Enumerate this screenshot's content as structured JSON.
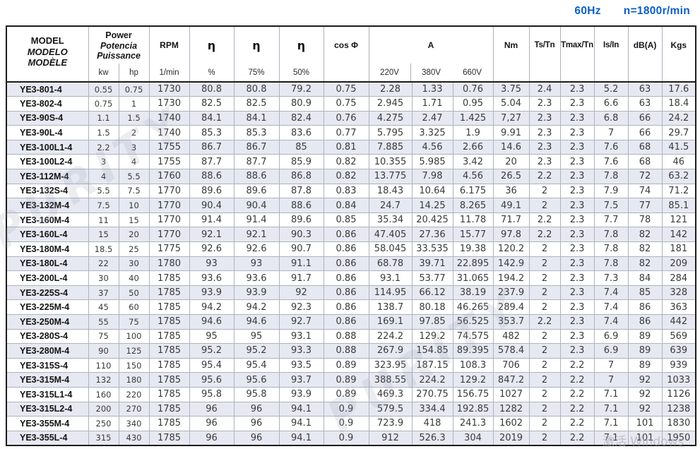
{
  "titlebar": {
    "frequency": "60Hz",
    "speed": "n=1800r/min"
  },
  "colors": {
    "accent_blue": "#0b5fc2",
    "row_stripe": "#e6e9f2",
    "grid_line": "#adb2bd",
    "outer_border": "#1c1c1c"
  },
  "table": {
    "header": {
      "model_lines": [
        "MODEL",
        "MODELO",
        "MODÈLE"
      ],
      "power_lines": [
        "Power",
        "Potencia",
        "Puissance"
      ],
      "power_units": [
        "kw",
        "hp"
      ],
      "rpm": "RPM",
      "rpm_unit": "1/min",
      "eta": "η",
      "eta_units": [
        "%",
        "75%",
        "50%"
      ],
      "cos_phi": "cos Φ",
      "current": "A",
      "current_units": [
        "220V",
        "380V",
        "660V"
      ],
      "torque": "Nm",
      "ts_tn": "Ts/Tn",
      "tmax_tn": "Tmax/Tn",
      "is_in": "Is/In",
      "db": "dB(A)",
      "kgs": "Kgs"
    },
    "column_keys": [
      "model",
      "kw",
      "hp",
      "rpm",
      "eta_100",
      "eta_75",
      "eta_50",
      "cos_phi",
      "a_220v",
      "a_380v",
      "a_660v",
      "nm",
      "ts_tn",
      "tmax_tn",
      "is_in",
      "dba",
      "kgs"
    ],
    "rows": [
      [
        "YE3-801-4",
        "0.55",
        "0.75",
        "1730",
        "80.8",
        "80.8",
        "79.2",
        "0.75",
        "2.28",
        "1.33",
        "0.76",
        "3.75",
        "2.4",
        "2.3",
        "5.2",
        "63",
        "17.6"
      ],
      [
        "YE3-802-4",
        "0.75",
        "1",
        "1730",
        "82.5",
        "82.5",
        "80.9",
        "0.75",
        "2.945",
        "1.71",
        "0.95",
        "5.04",
        "2.3",
        "2.3",
        "6.6",
        "63",
        "18.4"
      ],
      [
        "YE3-90S-4",
        "1.1",
        "1.5",
        "1740",
        "84.1",
        "84.1",
        "82.4",
        "0.76",
        "4.275",
        "2.47",
        "1.425",
        "7,27",
        "2.3",
        "2.3",
        "6.8",
        "66",
        "24.2"
      ],
      [
        "YE3-90L-4",
        "1.5",
        "2",
        "1740",
        "85.3",
        "85.3",
        "83.6",
        "0.77",
        "5.795",
        "3.325",
        "1.9",
        "9.91",
        "2.3",
        "2.3",
        "7",
        "66",
        "29.7"
      ],
      [
        "YE3-100L1-4",
        "2.2",
        "3",
        "1755",
        "86.7",
        "86.7",
        "85",
        "0.81",
        "7.885",
        "4.56",
        "2.66",
        "14.6",
        "2.3",
        "2.3",
        "7.6",
        "68",
        "41.5"
      ],
      [
        "YE3-100L2-4",
        "3",
        "4",
        "1755",
        "87.7",
        "87.7",
        "85.9",
        "0.82",
        "10.355",
        "5.985",
        "3.42",
        "20",
        "2.3",
        "2.3",
        "7.6",
        "68",
        "46"
      ],
      [
        "YE3-112M-4",
        "4",
        "5.5",
        "1760",
        "88.6",
        "88.6",
        "86.8",
        "0.82",
        "13.775",
        "7.98",
        "4.56",
        "26.5",
        "2.2",
        "2.3",
        "7.8",
        "72",
        "63.2"
      ],
      [
        "YE3-132S-4",
        "5.5",
        "7.5",
        "1770",
        "89.6",
        "89.6",
        "87.8",
        "0.83",
        "18.43",
        "10.64",
        "6.175",
        "36",
        "2",
        "2.3",
        "7.9",
        "74",
        "71.2"
      ],
      [
        "YE3-132M-4",
        "7.5",
        "10",
        "1770",
        "90.4",
        "90.4",
        "88.6",
        "0.84",
        "24.7",
        "14.25",
        "8.265",
        "49.1",
        "2",
        "2.3",
        "7.5",
        "77",
        "85.1"
      ],
      [
        "YE3-160M-4",
        "11",
        "15",
        "1770",
        "91.4",
        "91.4",
        "89.6",
        "0.85",
        "35.34",
        "20.425",
        "11.78",
        "71.7",
        "2.2",
        "2.3",
        "7.7",
        "78",
        "121"
      ],
      [
        "YE3-160L-4",
        "15",
        "20",
        "1770",
        "92.1",
        "92.1",
        "90.3",
        "0.86",
        "47.405",
        "27.36",
        "15.77",
        "97.8",
        "2.2",
        "2.3",
        "7.8",
        "82",
        "142"
      ],
      [
        "YE3-180M-4",
        "18.5",
        "25",
        "1775",
        "92.6",
        "92.6",
        "90.7",
        "0.86",
        "58.045",
        "33.535",
        "19.38",
        "120.2",
        "2",
        "2.3",
        "7.8",
        "82",
        "181"
      ],
      [
        "YE3-180L-4",
        "22",
        "30",
        "1780",
        "93",
        "93",
        "91.1",
        "0.86",
        "68.78",
        "39.71",
        "22.895",
        "142.9",
        "2",
        "2.3",
        "7.8",
        "82",
        "209"
      ],
      [
        "YE3-200L-4",
        "30",
        "40",
        "1785",
        "93.6",
        "93.6",
        "91.7",
        "0.86",
        "93.1",
        "53.77",
        "31.065",
        "194.2",
        "2",
        "2.3",
        "7.3",
        "84",
        "284"
      ],
      [
        "YE3-225S-4",
        "37",
        "50",
        "1785",
        "93.9",
        "93.9",
        "92",
        "0.86",
        "114.95",
        "66.12",
        "38.19",
        "237.9",
        "2",
        "2.3",
        "7.4",
        "85",
        "328"
      ],
      [
        "YE3-225M-4",
        "45",
        "60",
        "1785",
        "94.2",
        "94.2",
        "92.3",
        "0.86",
        "138.7",
        "80.18",
        "46.265",
        "289.4",
        "2",
        "2.3",
        "7.4",
        "86",
        "363"
      ],
      [
        "YE3-250M-4",
        "55",
        "75",
        "1785",
        "94.6",
        "94.6",
        "92.7",
        "0.86",
        "169.1",
        "97.85",
        "56.525",
        "353.7",
        "2.2",
        "2.3",
        "7.4",
        "86",
        "442"
      ],
      [
        "YE3-280S-4",
        "75",
        "100",
        "1785",
        "95",
        "95",
        "93.1",
        "0.88",
        "224.2",
        "129.2",
        "74.575",
        "482",
        "2",
        "2.3",
        "6.9",
        "89",
        "569"
      ],
      [
        "YE3-280M-4",
        "90",
        "125",
        "1785",
        "95.2",
        "95.2",
        "93.3",
        "0.88",
        "267.9",
        "154.85",
        "89.395",
        "578.4",
        "2",
        "2.3",
        "6.9",
        "89",
        "639"
      ],
      [
        "YE3-315S-4",
        "110",
        "150",
        "1785",
        "95.4",
        "95.4",
        "93.5",
        "0.89",
        "323.95",
        "187.15",
        "108.3",
        "706",
        "2",
        "2.2",
        "7",
        "89",
        "939"
      ],
      [
        "YE3-315M-4",
        "132",
        "180",
        "1785",
        "95.6",
        "95.6",
        "93.7",
        "0.89",
        "388.55",
        "224.2",
        "129.2",
        "847.2",
        "2",
        "2.2",
        "7",
        "92",
        "1033"
      ],
      [
        "YE3-315L1-4",
        "160",
        "220",
        "1785",
        "95.8",
        "95.8",
        "93.9",
        "0.89",
        "469.3",
        "270.75",
        "156.75",
        "1027",
        "2",
        "2.2",
        "7.1",
        "92",
        "1126"
      ],
      [
        "YE3-315L2-4",
        "200",
        "270",
        "1785",
        "96",
        "96",
        "94.1",
        "0.9",
        "579.5",
        "334.4",
        "192.85",
        "1282",
        "2",
        "2.2",
        "7.1",
        "92",
        "1238"
      ],
      [
        "YE3-355M-4",
        "250",
        "340",
        "1785",
        "96",
        "96",
        "94.1",
        "0.9",
        "723.9",
        "418",
        "241.3",
        "1602",
        "2",
        "2.2",
        "7.1",
        "101",
        "1830"
      ],
      [
        "YE3-355L-4",
        "315",
        "430",
        "1785",
        "96",
        "96",
        "94.1",
        "0.9",
        "912",
        "526.3",
        "304",
        "2019",
        "2",
        "2.2",
        "7.1",
        "101",
        "1950"
      ]
    ]
  },
  "watermarks": {
    "brand": "PURITY",
    "activation": "激活 Windows"
  }
}
